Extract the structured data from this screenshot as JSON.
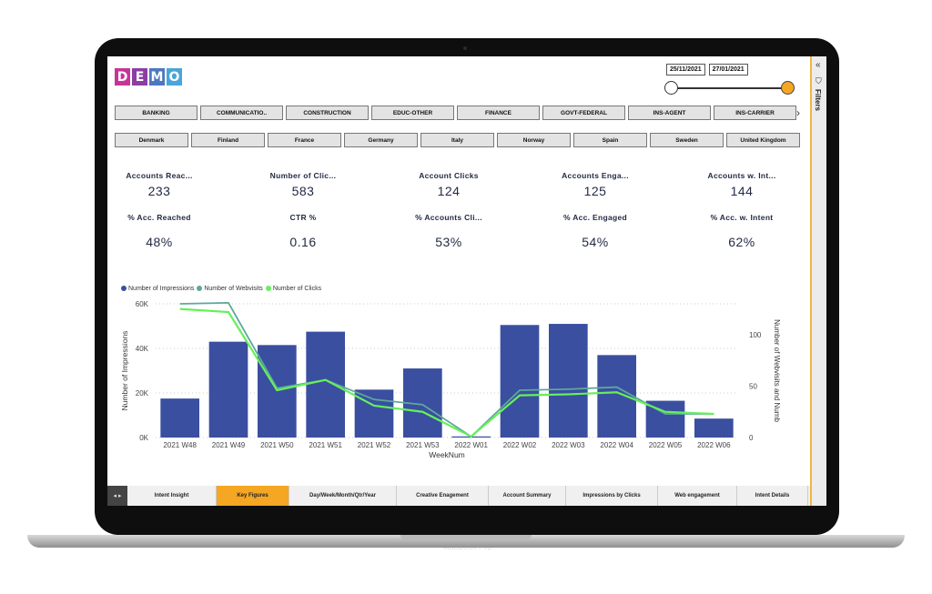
{
  "header": {
    "logo_letters": [
      "D",
      "E",
      "M",
      "O"
    ],
    "logo_colors": [
      "#c8339a",
      "#8b3fa3",
      "#4d77c0",
      "#4aa5d9"
    ]
  },
  "date_range": {
    "start": "25/11/2021",
    "end": "27/01/2021"
  },
  "filters_pane": {
    "label": "Filters",
    "collapse_icon": "double-chevron-left-icon",
    "filter_icon": "funnel-icon"
  },
  "industries": [
    "BANKING",
    "COMMUNICATIO..",
    "CONSTRUCTION",
    "EDUC-OTHER",
    "FINANCE",
    "GOVT-FEDERAL",
    "INS-AGENT",
    "INS-CARRIER"
  ],
  "countries": [
    "Denmark",
    "Finland",
    "France",
    "Germany",
    "Italy",
    "Norway",
    "Spain",
    "Sweden",
    "United Kingdom"
  ],
  "kpis": [
    {
      "title": "Accounts Reac...",
      "value": "233",
      "sub_title": "% Acc. Reached",
      "sub_value": "48%"
    },
    {
      "title": "Number of Clic...",
      "value": "583",
      "sub_title": "CTR %",
      "sub_value": "0.16"
    },
    {
      "title": "Account Clicks",
      "value": "124",
      "sub_title": "% Accounts Cli...",
      "sub_value": "53%"
    },
    {
      "title": "Accounts Enga...",
      "value": "125",
      "sub_title": "% Acc. Engaged",
      "sub_value": "54%"
    },
    {
      "title": "Accounts w. Int...",
      "value": "144",
      "sub_title": "% Acc. w. Intent",
      "sub_value": "62%"
    }
  ],
  "chart_data": {
    "type": "bar",
    "categories": [
      "2021 W48",
      "2021 W49",
      "2021 W50",
      "2021 W51",
      "2021 W52",
      "2021 W53",
      "2022 W01",
      "2022 W02",
      "2022 W03",
      "2022 W04",
      "2022 W05",
      "2022 W06"
    ],
    "series": [
      {
        "name": "Number of Impressions",
        "color": "#3a4fa0",
        "type": "bar",
        "axis": "left",
        "values": [
          17500,
          43000,
          41500,
          47500,
          21500,
          31000,
          500,
          50500,
          51000,
          37000,
          16500,
          8500
        ]
      },
      {
        "name": "Number of Webvisits",
        "color": "#5ea89a",
        "type": "line",
        "axis": "right",
        "values": [
          130,
          131,
          48,
          56,
          37,
          32,
          1,
          46,
          47,
          49,
          23,
          23
        ]
      },
      {
        "name": "Number of Clicks",
        "color": "#66ef5a",
        "type": "line",
        "axis": "right",
        "values": [
          125,
          122,
          46,
          56,
          31,
          25,
          1,
          41,
          42,
          44,
          25,
          23
        ]
      }
    ],
    "xlabel": "WeekNum",
    "ylabel": "Number of Impressions",
    "y2label": "Number of Webvisits and Numb",
    "ylim": [
      0,
      60000
    ],
    "y2lim": [
      0,
      130
    ],
    "yticks": [
      "0K",
      "20K",
      "40K",
      "60K"
    ],
    "y2ticks": [
      "0",
      "50",
      "100"
    ]
  },
  "tabs": [
    "Intent Insight",
    "Key Figures",
    "Day/Week/Month/Qtr/Year",
    "Creative Enagement",
    "Account Summary",
    "Impressions by Clicks",
    "Web engagement",
    "Intent Details"
  ],
  "active_tab": "Key Figures",
  "device": {
    "brand": "MacBook Pro"
  }
}
